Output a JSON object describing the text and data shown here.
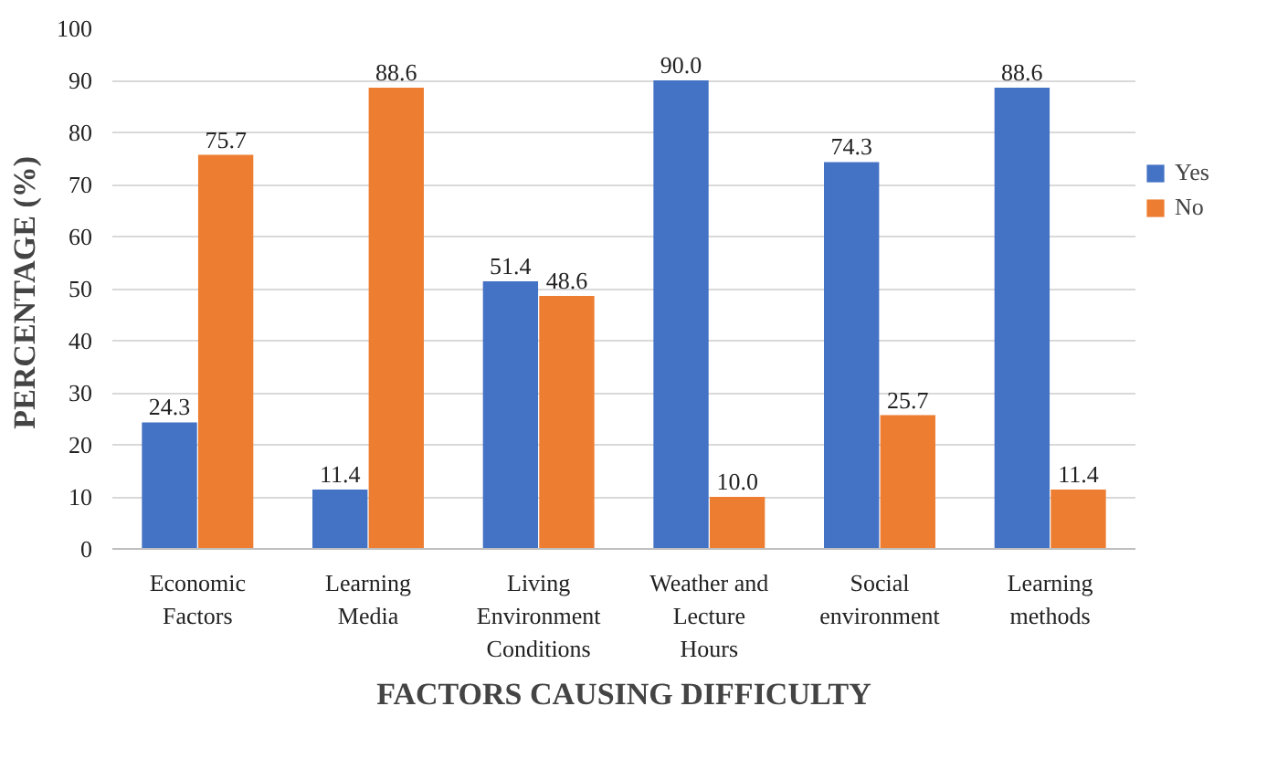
{
  "chart_data": {
    "type": "bar",
    "xlabel": "FACTORS CAUSING DIFFICULTY",
    "ylabel": "PERCENTAGE  (%)",
    "categories": [
      "Economic\nFactors",
      "Learning\nMedia",
      "Living\nEnvironment\nConditions",
      "Weather and\nLecture\nHours",
      "Social\nenvironment",
      "Learning\nmethods"
    ],
    "series": [
      {
        "name": "Yes",
        "color": "#4472c4",
        "values": [
          24.3,
          11.4,
          51.4,
          90.0,
          74.3,
          88.6
        ],
        "value_labels": [
          "24.3",
          "11.4",
          "51.4",
          "90.0",
          "74.3",
          "88.6"
        ]
      },
      {
        "name": "No",
        "color": "#ed7d31",
        "values": [
          75.7,
          88.6,
          48.6,
          10.0,
          25.7,
          11.4
        ],
        "value_labels": [
          "75.7",
          "88.6",
          "48.6",
          "10.0",
          "25.7",
          "11.4"
        ]
      }
    ],
    "ylim": [
      0,
      100
    ],
    "yticks": [
      0,
      10,
      20,
      30,
      40,
      50,
      60,
      70,
      80,
      90,
      100
    ],
    "grid": "y",
    "legend": "right"
  }
}
